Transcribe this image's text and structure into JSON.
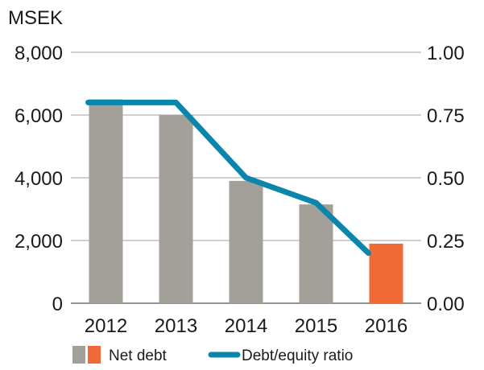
{
  "chart_data": {
    "type": "bar+line",
    "unit_label": "MSEK",
    "categories": [
      "2012",
      "2013",
      "2014",
      "2015",
      "2016"
    ],
    "left_axis": {
      "min": 0,
      "max": 8000,
      "ticks": [
        0,
        2000,
        4000,
        6000,
        8000
      ],
      "tick_labels": [
        "0",
        "2,000",
        "4,000",
        "6,000",
        "8,000"
      ]
    },
    "right_axis": {
      "min": 0,
      "max": 1.0,
      "ticks": [
        0,
        0.25,
        0.5,
        0.75,
        1.0
      ],
      "tick_labels": [
        "0.00",
        "0.25",
        "0.50",
        "0.75",
        "1.00"
      ]
    },
    "series": [
      {
        "name": "Net debt",
        "type": "bar",
        "axis": "left",
        "values": [
          6500,
          6000,
          3900,
          3150,
          1900
        ],
        "colors": [
          "#a39f99",
          "#a39f99",
          "#a39f99",
          "#a39f99",
          "#ef6a36"
        ]
      },
      {
        "name": "Debt/equity ratio",
        "type": "line",
        "axis": "right",
        "values": [
          0.8,
          0.8,
          0.5,
          0.4,
          0.2
        ],
        "color": "#0a86ad"
      }
    ],
    "legend": {
      "placement": "bottom",
      "items": [
        {
          "label": "Net debt",
          "swatch_colors": [
            "#a39f99",
            "#ef6a36"
          ]
        },
        {
          "label": "Debt/equity ratio",
          "swatch_colors": [
            "#0a86ad"
          ]
        }
      ]
    },
    "grid": true
  }
}
